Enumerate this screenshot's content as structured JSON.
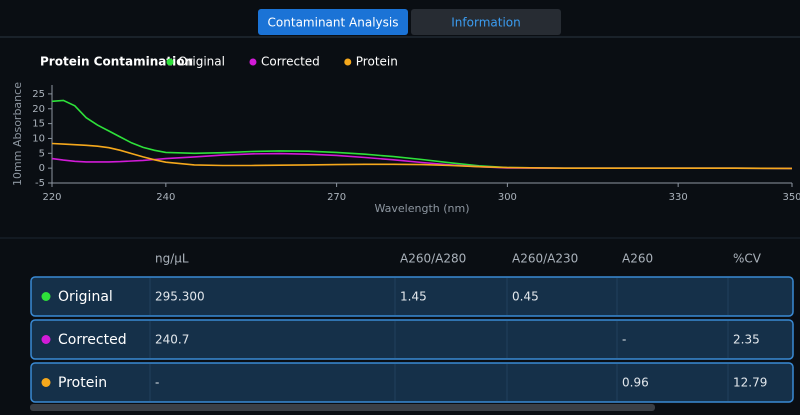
{
  "tabs": [
    "Contaminant Analysis",
    "Information"
  ],
  "chart_data": {
    "type": "line",
    "title": "Protein Contamination",
    "x_label": "Wavelength (nm)",
    "y_label": "10mm Absorbance",
    "x": [
      220,
      222,
      224,
      226,
      228,
      230,
      232,
      234,
      236,
      238,
      240,
      245,
      250,
      255,
      260,
      265,
      270,
      275,
      280,
      285,
      290,
      295,
      300,
      310,
      320,
      330,
      340,
      350
    ],
    "series": [
      {
        "name": "Original",
        "color": "#2ee03a",
        "values": [
          22.5,
          22.8,
          21,
          17,
          14.5,
          12.5,
          10.5,
          8.5,
          7,
          6,
          5.3,
          5,
          5.2,
          5.6,
          5.8,
          5.7,
          5.3,
          4.7,
          3.9,
          2.9,
          1.8,
          0.8,
          0.2,
          0,
          0,
          0,
          0,
          -0.1
        ]
      },
      {
        "name": "Corrected",
        "color": "#d21bd8",
        "values": [
          3.2,
          2.7,
          2.3,
          2.1,
          2.1,
          2.1,
          2.2,
          2.4,
          2.6,
          2.9,
          3.2,
          3.8,
          4.4,
          4.8,
          4.9,
          4.7,
          4.3,
          3.6,
          2.8,
          1.9,
          1.1,
          0.5,
          0.1,
          0,
          0,
          0,
          0,
          -0.1
        ]
      },
      {
        "name": "Protein",
        "color": "#f5a81c",
        "values": [
          8.3,
          8.1,
          7.9,
          7.7,
          7.4,
          6.9,
          6,
          4.9,
          3.8,
          2.8,
          2,
          1.1,
          0.9,
          0.9,
          1,
          1.1,
          1.2,
          1.3,
          1.3,
          1.2,
          0.9,
          0.5,
          0.2,
          0,
          0,
          0,
          0,
          -0.1
        ]
      }
    ],
    "xlim": [
      220,
      350
    ],
    "xticks": [
      220,
      240,
      270,
      300,
      330,
      350
    ],
    "ylim": [
      -5,
      28
    ],
    "yticks": [
      -5,
      0,
      5,
      10,
      15,
      20,
      25
    ],
    "grid": false
  },
  "table": {
    "columns": [
      "ng/µL",
      "A260/A280",
      "A260/A230",
      "A260",
      "%CV"
    ],
    "rows": [
      {
        "name": "Original",
        "color": "#2ee03a",
        "cells": [
          "295.300",
          "1.45",
          "0.45",
          null,
          null
        ]
      },
      {
        "name": "Corrected",
        "color": "#d21bd8",
        "cells": [
          "240.7",
          null,
          null,
          "-",
          "2.35"
        ]
      },
      {
        "name": "Protein",
        "color": "#f5a81c",
        "cells": [
          "-",
          null,
          null,
          "0.96",
          "12.79"
        ]
      }
    ]
  }
}
